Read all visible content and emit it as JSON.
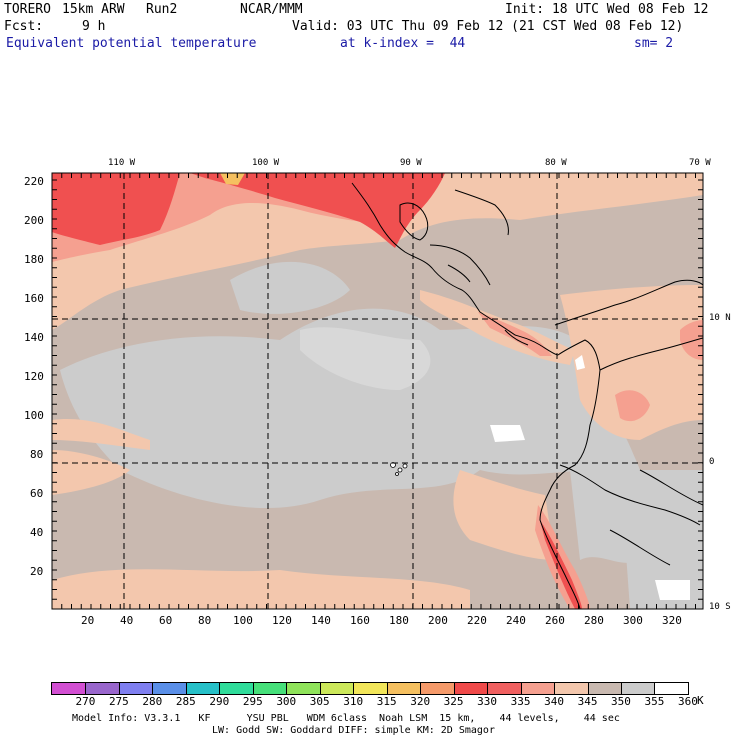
{
  "header": {
    "model": "TORERO",
    "resolution": "15km ARW",
    "run": "Run2",
    "org": "NCAR/MMM",
    "init": "Init: 18 UTC Wed 08 Feb 12",
    "fcst_label": "Fcst:",
    "fcst_value": "9 h",
    "valid": "Valid: 03 UTC Thu 09 Feb 12 (21 CST Wed 08 Feb 12)",
    "field": "Equivalent potential temperature",
    "level": "at k-index =  44",
    "smoothing": "sm= 2"
  },
  "map": {
    "lon_labels": [
      "110 W",
      "100 W",
      "90 W",
      "80 W",
      "70 W"
    ],
    "lat_labels": [
      "10 N",
      "0",
      "10 S"
    ],
    "y_ticks": [
      "220",
      "200",
      "180",
      "160",
      "140",
      "120",
      "100",
      "80",
      "60",
      "40",
      "20"
    ],
    "x_ticks": [
      "20",
      "40",
      "60",
      "80",
      "100",
      "120",
      "140",
      "160",
      "180",
      "200",
      "220",
      "240",
      "260",
      "280",
      "300",
      "320"
    ]
  },
  "colorbar": {
    "labels": [
      "270",
      "275",
      "280",
      "285",
      "290",
      "295",
      "300",
      "305",
      "310",
      "315",
      "320",
      "325",
      "330",
      "335",
      "340",
      "345",
      "350",
      "355",
      "360"
    ],
    "unit": "K",
    "colors": [
      "#d24fd2",
      "#9966cc",
      "#7f7ff0",
      "#5a8fe8",
      "#26c0c8",
      "#2fdc9a",
      "#46e07a",
      "#8fe35a",
      "#cce85a",
      "#f2e65a",
      "#f5c060",
      "#f59a6a",
      "#f04a4a",
      "#f06060",
      "#f5a090",
      "#f3c7ad",
      "#c9b9b0",
      "#cccccc",
      "#ffffff"
    ]
  },
  "footer": {
    "line1": "Model Info: V3.3.1   KF      YSU PBL   WDM 6class  Noah LSM  15 km,    44 levels,    44 sec",
    "line2": "LW: Godd SW: Goddard DIFF: simple KM: 2D Smagor"
  }
}
